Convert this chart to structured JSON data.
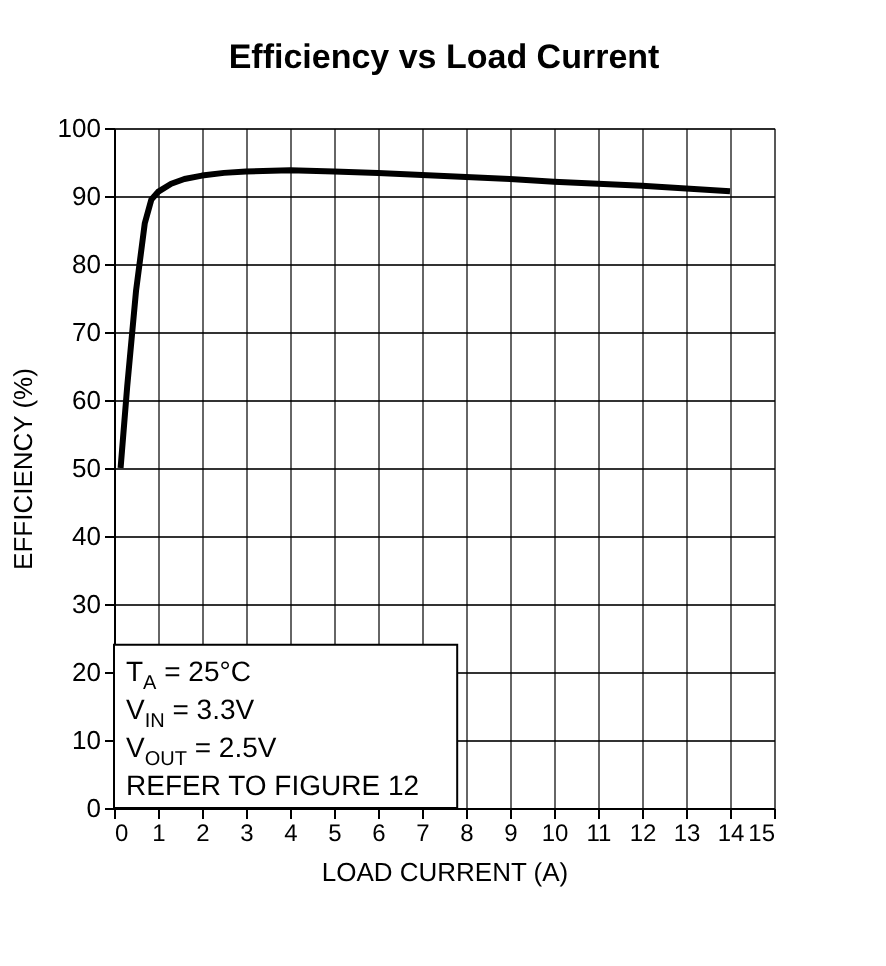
{
  "chart_data": {
    "type": "line",
    "title": "Efficiency vs Load Current",
    "xlabel": "LOAD CURRENT (A)",
    "ylabel": "EFFICIENCY (%)",
    "x": [
      0.15,
      0.3,
      0.5,
      0.7,
      0.85,
      1,
      1.3,
      1.6,
      2,
      2.5,
      3,
      4,
      5,
      6,
      7,
      8,
      9,
      10,
      11,
      12,
      13,
      14
    ],
    "series": [
      {
        "color": "#000000",
        "values": [
          50,
          62,
          76,
          86,
          89.5,
          90.6,
          91.8,
          92.5,
          93,
          93.4,
          93.6,
          93.8,
          93.6,
          93.4,
          93.1,
          92.8,
          92.5,
          92.1,
          91.8,
          91.5,
          91.1,
          90.7
        ]
      }
    ],
    "xlim": [
      0,
      15
    ],
    "ylim": [
      0,
      100
    ],
    "xticks": [
      0,
      1,
      2,
      3,
      4,
      5,
      6,
      7,
      8,
      9,
      10,
      11,
      12,
      13,
      14,
      15
    ],
    "yticks": [
      0,
      10,
      20,
      30,
      40,
      50,
      60,
      70,
      80,
      90,
      100
    ],
    "grid": true,
    "marker": "none",
    "line_style": "solid",
    "annotations": [
      "T$_{A}$ = 25°C\nV$_{IN}$ = 3.3V\nV$_{OUT}$ = 2.5V\nREFER TO FIGURE 12"
    ]
  }
}
